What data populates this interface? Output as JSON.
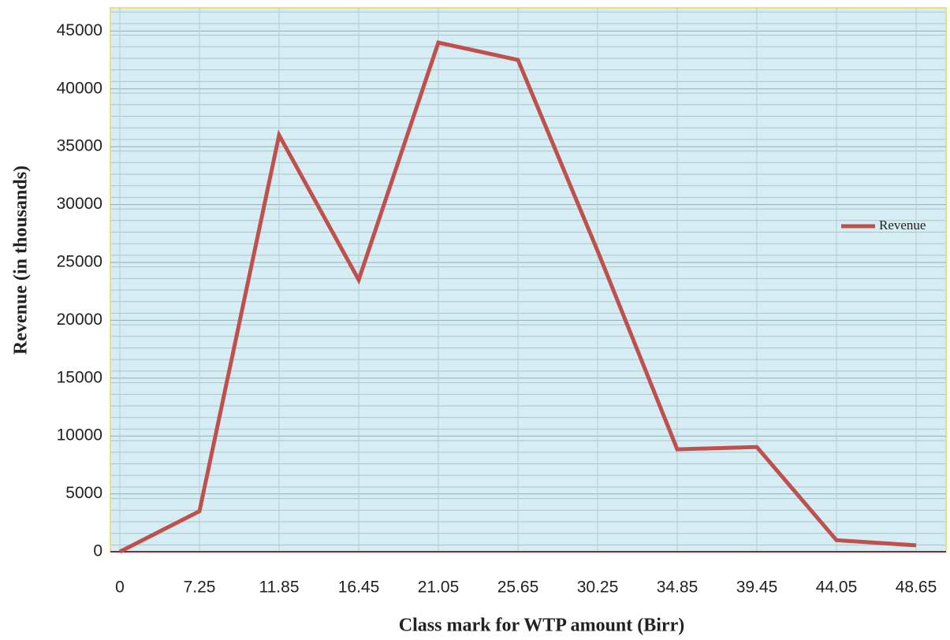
{
  "chart_data": {
    "type": "line",
    "x_label": "Class mark for WTP amount (Birr)",
    "y_label": "Revenue (in thousands)",
    "categories": [
      "0",
      "7.25",
      "11.85",
      "16.45",
      "21.05",
      "25.65",
      "30.25",
      "34.85",
      "39.45",
      "44.05",
      "48.65"
    ],
    "series": [
      {
        "name": "Revenue",
        "color": "#c0504d",
        "values": [
          0,
          3500,
          36000,
          23500,
          44000,
          42500,
          26000,
          8850,
          9050,
          1000,
          550
        ]
      }
    ],
    "ylim": [
      0,
      47000
    ],
    "yticks": [
      0,
      5000,
      10000,
      15000,
      20000,
      25000,
      30000,
      35000,
      40000,
      45000
    ],
    "grid": true,
    "legend": "right"
  }
}
